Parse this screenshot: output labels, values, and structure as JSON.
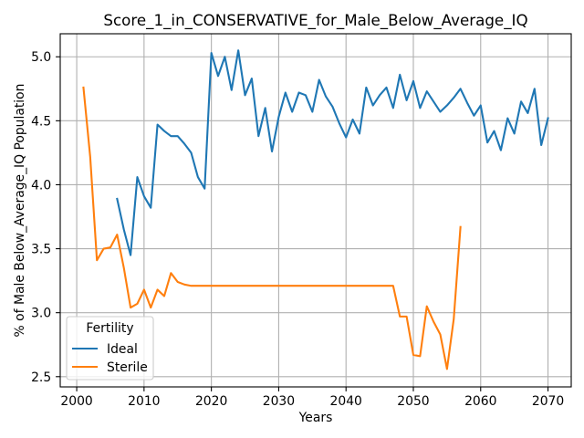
{
  "chart_data": {
    "type": "line",
    "title": "Score_1_in_CONSERVATIVE_for_Male_Below_Average_IQ",
    "xlabel": "Years",
    "ylabel": "% of Male Below_Average_IQ Population",
    "xlim": [
      1997.55,
      2073.45
    ],
    "ylim": [
      2.42,
      5.18
    ],
    "xticks": [
      "2000",
      "2010",
      "2020",
      "2030",
      "2040",
      "2050",
      "2060",
      "2070"
    ],
    "yticks": [
      "2.5",
      "3.0",
      "3.5",
      "4.0",
      "4.5",
      "5.0"
    ],
    "grid": true,
    "legend": {
      "title": "Fertility",
      "placement": "lower-left"
    },
    "series": [
      {
        "name": "Ideal",
        "color": "#1f77b4",
        "x": [
          2006,
          2007,
          2008,
          2009,
          2010,
          2011,
          2012,
          2013,
          2014,
          2015,
          2016,
          2017,
          2018,
          2019,
          2020,
          2021,
          2022,
          2023,
          2024,
          2025,
          2026,
          2027,
          2028,
          2029,
          2030,
          2031,
          2032,
          2033,
          2034,
          2035,
          2036,
          2037,
          2038,
          2039,
          2040,
          2041,
          2042,
          2043,
          2044,
          2045,
          2046,
          2047,
          2048,
          2049,
          2050,
          2051,
          2052,
          2053,
          2054,
          2055,
          2056,
          2057,
          2058,
          2059,
          2060,
          2061,
          2062,
          2063,
          2064,
          2065,
          2066,
          2067,
          2068,
          2069,
          2070
        ],
        "y": [
          3.89,
          3.65,
          3.45,
          4.06,
          3.91,
          3.82,
          4.47,
          4.42,
          4.38,
          4.38,
          4.32,
          4.25,
          4.06,
          3.97,
          5.03,
          4.85,
          5.0,
          4.74,
          5.05,
          4.7,
          4.83,
          4.38,
          4.6,
          4.26,
          4.53,
          4.72,
          4.57,
          4.72,
          4.7,
          4.57,
          4.82,
          4.69,
          4.61,
          4.48,
          4.37,
          4.51,
          4.4,
          4.76,
          4.62,
          4.7,
          4.76,
          4.6,
          4.86,
          4.66,
          4.81,
          4.6,
          4.73,
          4.65,
          4.57,
          4.62,
          4.68,
          4.75,
          4.64,
          4.54,
          4.62,
          4.33,
          4.42,
          4.27,
          4.52,
          4.4,
          4.65,
          4.56,
          4.75,
          4.31,
          4.52
        ]
      },
      {
        "name": "Sterile",
        "color": "#ff7f0e",
        "x": [
          2001,
          2002,
          2003,
          2004,
          2005,
          2006,
          2007,
          2008,
          2009,
          2010,
          2011,
          2012,
          2013,
          2014,
          2015,
          2016,
          2017,
          2018,
          2019,
          2020,
          2021,
          2022,
          2023,
          2024,
          2025,
          2026,
          2027,
          2028,
          2029,
          2030,
          2031,
          2032,
          2033,
          2034,
          2035,
          2036,
          2037,
          2038,
          2039,
          2040,
          2041,
          2042,
          2043,
          2044,
          2045,
          2046,
          2047,
          2048,
          2049,
          2050,
          2051,
          2052,
          2053,
          2054,
          2055,
          2056,
          2057
        ],
        "y": [
          4.76,
          4.22,
          3.41,
          3.5,
          3.51,
          3.61,
          3.35,
          3.04,
          3.07,
          3.18,
          3.04,
          3.18,
          3.13,
          3.31,
          3.24,
          3.22,
          3.21,
          3.21,
          3.21,
          3.21,
          3.21,
          3.21,
          3.21,
          3.21,
          3.21,
          3.21,
          3.21,
          3.21,
          3.21,
          3.21,
          3.21,
          3.21,
          3.21,
          3.21,
          3.21,
          3.21,
          3.21,
          3.21,
          3.21,
          3.21,
          3.21,
          3.21,
          3.21,
          3.21,
          3.21,
          3.21,
          3.21,
          2.97,
          2.97,
          2.67,
          2.66,
          3.05,
          2.93,
          2.83,
          2.56,
          2.95,
          3.67
        ]
      }
    ]
  }
}
